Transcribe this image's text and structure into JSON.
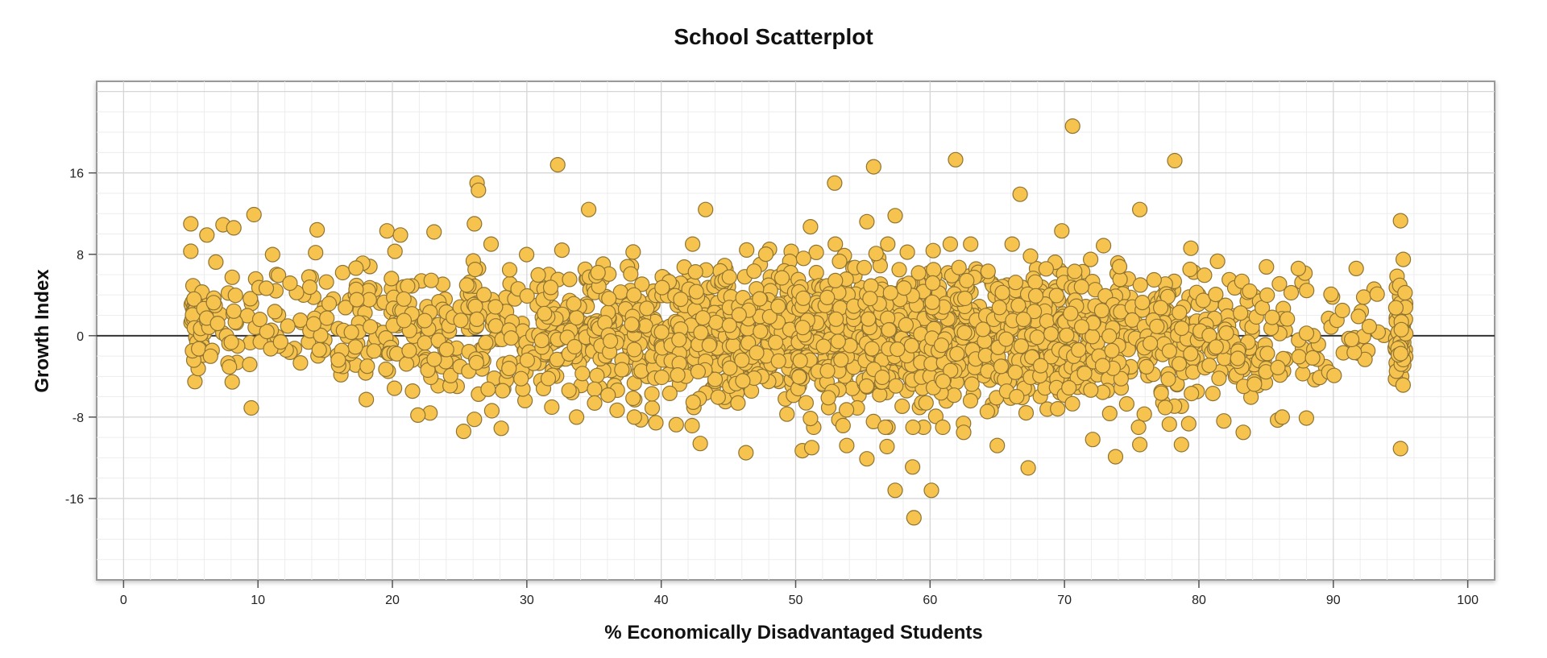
{
  "chart_data": {
    "type": "scatter",
    "title": "School Scatterplot",
    "xlabel": "% Economically Disadvantaged Students",
    "ylabel": "Growth Index",
    "xlim": [
      -2,
      102
    ],
    "ylim": [
      -24,
      25
    ],
    "xticks": [
      0,
      10,
      20,
      30,
      40,
      50,
      60,
      70,
      80,
      90,
      100
    ],
    "yticks": [
      -16,
      -8,
      0,
      8,
      16
    ],
    "grid": true,
    "reference_line_y": 0,
    "series": [
      {
        "name": "Schools",
        "color": "#f6c44e",
        "outliers": [
          [
            70.6,
            20.6
          ],
          [
            61.9,
            17.3
          ],
          [
            78.2,
            17.2
          ],
          [
            32.3,
            16.8
          ],
          [
            55.8,
            16.6
          ],
          [
            26.3,
            15.0
          ],
          [
            26.4,
            14.3
          ],
          [
            52.9,
            15.0
          ],
          [
            66.7,
            13.9
          ],
          [
            34.6,
            12.4
          ],
          [
            43.3,
            12.4
          ],
          [
            75.6,
            12.4
          ],
          [
            5.0,
            11.0
          ],
          [
            9.7,
            11.9
          ],
          [
            7.4,
            10.9
          ],
          [
            8.2,
            10.6
          ],
          [
            14.4,
            10.4
          ],
          [
            19.6,
            10.3
          ],
          [
            20.6,
            9.9
          ],
          [
            23.1,
            10.2
          ],
          [
            26.1,
            11.0
          ],
          [
            51.1,
            10.7
          ],
          [
            55.3,
            11.2
          ],
          [
            57.4,
            11.8
          ],
          [
            69.8,
            10.3
          ],
          [
            95.0,
            11.3
          ],
          [
            6.2,
            9.9
          ],
          [
            5.0,
            8.3
          ],
          [
            79.4,
            8.6
          ],
          [
            91.7,
            6.6
          ],
          [
            87.4,
            6.6
          ],
          [
            95.2,
            7.5
          ],
          [
            25.3,
            -9.4
          ],
          [
            28.1,
            -9.1
          ],
          [
            9.5,
            -7.1
          ],
          [
            42.9,
            -10.6
          ],
          [
            46.3,
            -11.5
          ],
          [
            50.5,
            -11.3
          ],
          [
            51.2,
            -11.0
          ],
          [
            53.8,
            -10.8
          ],
          [
            55.3,
            -12.1
          ],
          [
            56.8,
            -10.9
          ],
          [
            58.7,
            -12.9
          ],
          [
            57.4,
            -15.2
          ],
          [
            60.1,
            -15.2
          ],
          [
            58.8,
            -17.9
          ],
          [
            67.3,
            -13.0
          ],
          [
            73.8,
            -11.9
          ],
          [
            75.6,
            -10.7
          ],
          [
            78.7,
            -10.7
          ],
          [
            83.3,
            -9.5
          ],
          [
            95.0,
            -11.1
          ],
          [
            72.1,
            -10.2
          ],
          [
            65.0,
            -10.8
          ],
          [
            22.8,
            -7.6
          ],
          [
            21.9,
            -7.8
          ],
          [
            86.2,
            -8.0
          ],
          [
            88.0,
            -8.1
          ],
          [
            33.7,
            -8.0
          ],
          [
            38.0,
            -8.0
          ],
          [
            62.5,
            -9.5
          ]
        ],
        "bands": [
          {
            "x": [
              5,
              6
            ],
            "center": 0.8,
            "spread": 2.7,
            "n": 44
          },
          {
            "x": [
              6,
              10
            ],
            "center": 0.9,
            "spread": 3.0,
            "n": 34
          },
          {
            "x": [
              10,
              15
            ],
            "center": 1.0,
            "spread": 3.2,
            "n": 44
          },
          {
            "x": [
              15,
              20
            ],
            "center": 1.0,
            "spread": 3.3,
            "n": 64
          },
          {
            "x": [
              20,
              25
            ],
            "center": 0.8,
            "spread": 3.3,
            "n": 76
          },
          {
            "x": [
              25,
              30
            ],
            "center": 0.8,
            "spread": 3.4,
            "n": 96
          },
          {
            "x": [
              30,
              35
            ],
            "center": 0.6,
            "spread": 3.3,
            "n": 110
          },
          {
            "x": [
              35,
              40
            ],
            "center": 0.4,
            "spread": 3.4,
            "n": 140
          },
          {
            "x": [
              40,
              45
            ],
            "center": 0.3,
            "spread": 3.5,
            "n": 172
          },
          {
            "x": [
              45,
              50
            ],
            "center": 0.2,
            "spread": 3.5,
            "n": 188
          },
          {
            "x": [
              50,
              55
            ],
            "center": 0.1,
            "spread": 3.5,
            "n": 200
          },
          {
            "x": [
              55,
              60
            ],
            "center": 0.0,
            "spread": 3.5,
            "n": 204
          },
          {
            "x": [
              60,
              65
            ],
            "center": 0.1,
            "spread": 3.4,
            "n": 196
          },
          {
            "x": [
              65,
              70
            ],
            "center": 0.0,
            "spread": 3.4,
            "n": 180
          },
          {
            "x": [
              70,
              75
            ],
            "center": -0.1,
            "spread": 3.3,
            "n": 158
          },
          {
            "x": [
              75,
              80
            ],
            "center": -0.2,
            "spread": 3.3,
            "n": 130
          },
          {
            "x": [
              80,
              85
            ],
            "center": -0.3,
            "spread": 3.1,
            "n": 88
          },
          {
            "x": [
              85,
              90
            ],
            "center": -0.2,
            "spread": 3.0,
            "n": 40
          },
          {
            "x": [
              90,
              94
            ],
            "center": 0.0,
            "spread": 2.6,
            "n": 22
          },
          {
            "x": [
              94.6,
              95.4
            ],
            "center": 0.2,
            "spread": 2.6,
            "n": 64
          }
        ]
      }
    ]
  }
}
